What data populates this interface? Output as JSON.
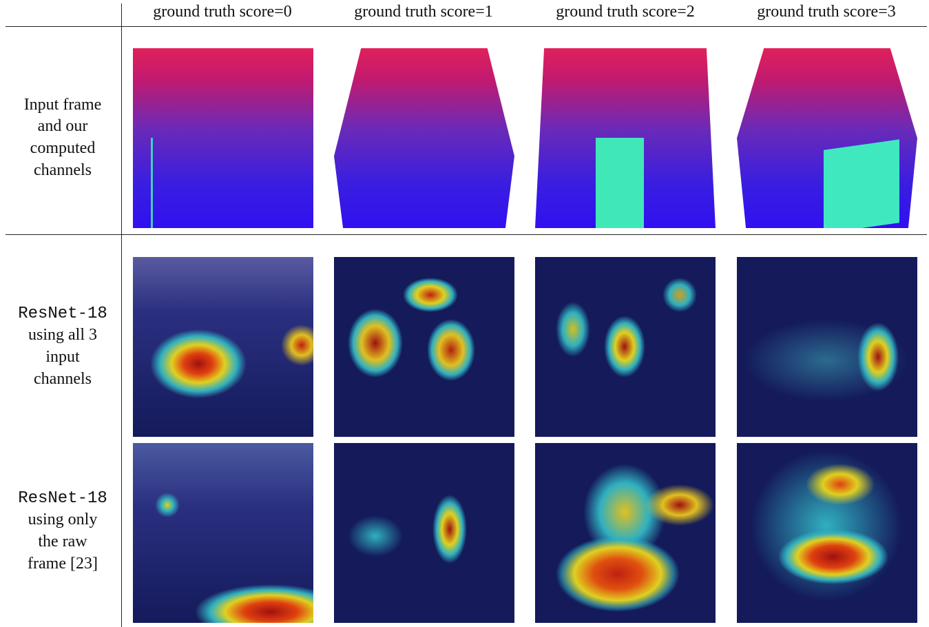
{
  "table": {
    "columns": [
      "ground truth score=0",
      "ground truth score=1",
      "ground truth score=2",
      "ground truth score=3"
    ],
    "rows": [
      {
        "lines": [
          "Input frame",
          "and our",
          "computed",
          "channels"
        ]
      },
      {
        "model": "ResNet-18",
        "lines": [
          "using all 3",
          "input",
          "channels"
        ]
      },
      {
        "model": "ResNet-18",
        "lines": [
          "using only",
          "the raw",
          "frame [23]"
        ]
      }
    ]
  }
}
